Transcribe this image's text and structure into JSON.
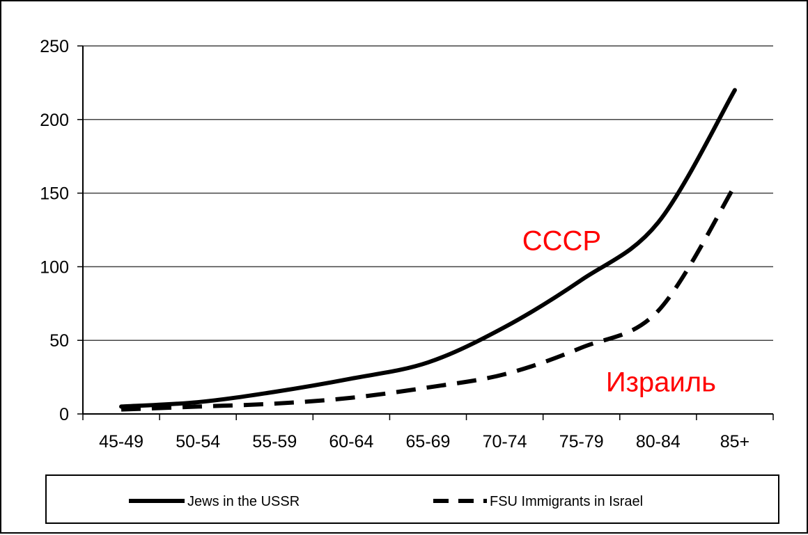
{
  "chart_data": {
    "type": "line",
    "title": "",
    "xlabel": "",
    "ylabel": "",
    "categories": [
      "45-49",
      "50-54",
      "55-59",
      "60-64",
      "65-69",
      "70-74",
      "75-79",
      "80-84",
      "85+"
    ],
    "ylim": [
      0,
      250
    ],
    "yticks": [
      0,
      50,
      100,
      150,
      200,
      250
    ],
    "grid": true,
    "legend": {
      "position": "bottom"
    },
    "series": [
      {
        "name": "Jews in the USSR",
        "style": "solid",
        "color": "#000000",
        "values": [
          5,
          8,
          15,
          24,
          35,
          59,
          91,
          130,
          220
        ]
      },
      {
        "name": "FSU Immigrants in Israel",
        "style": "dashed",
        "color": "#000000",
        "values": [
          3,
          5,
          7,
          11,
          18,
          27,
          45,
          70,
          155
        ]
      }
    ],
    "annotations": [
      {
        "text": "СССР",
        "color": "#ff0000",
        "x": "75-79",
        "y": 118
      },
      {
        "text": "Израиль",
        "color": "#ff0000",
        "x": "80-84",
        "y": 22
      }
    ]
  }
}
